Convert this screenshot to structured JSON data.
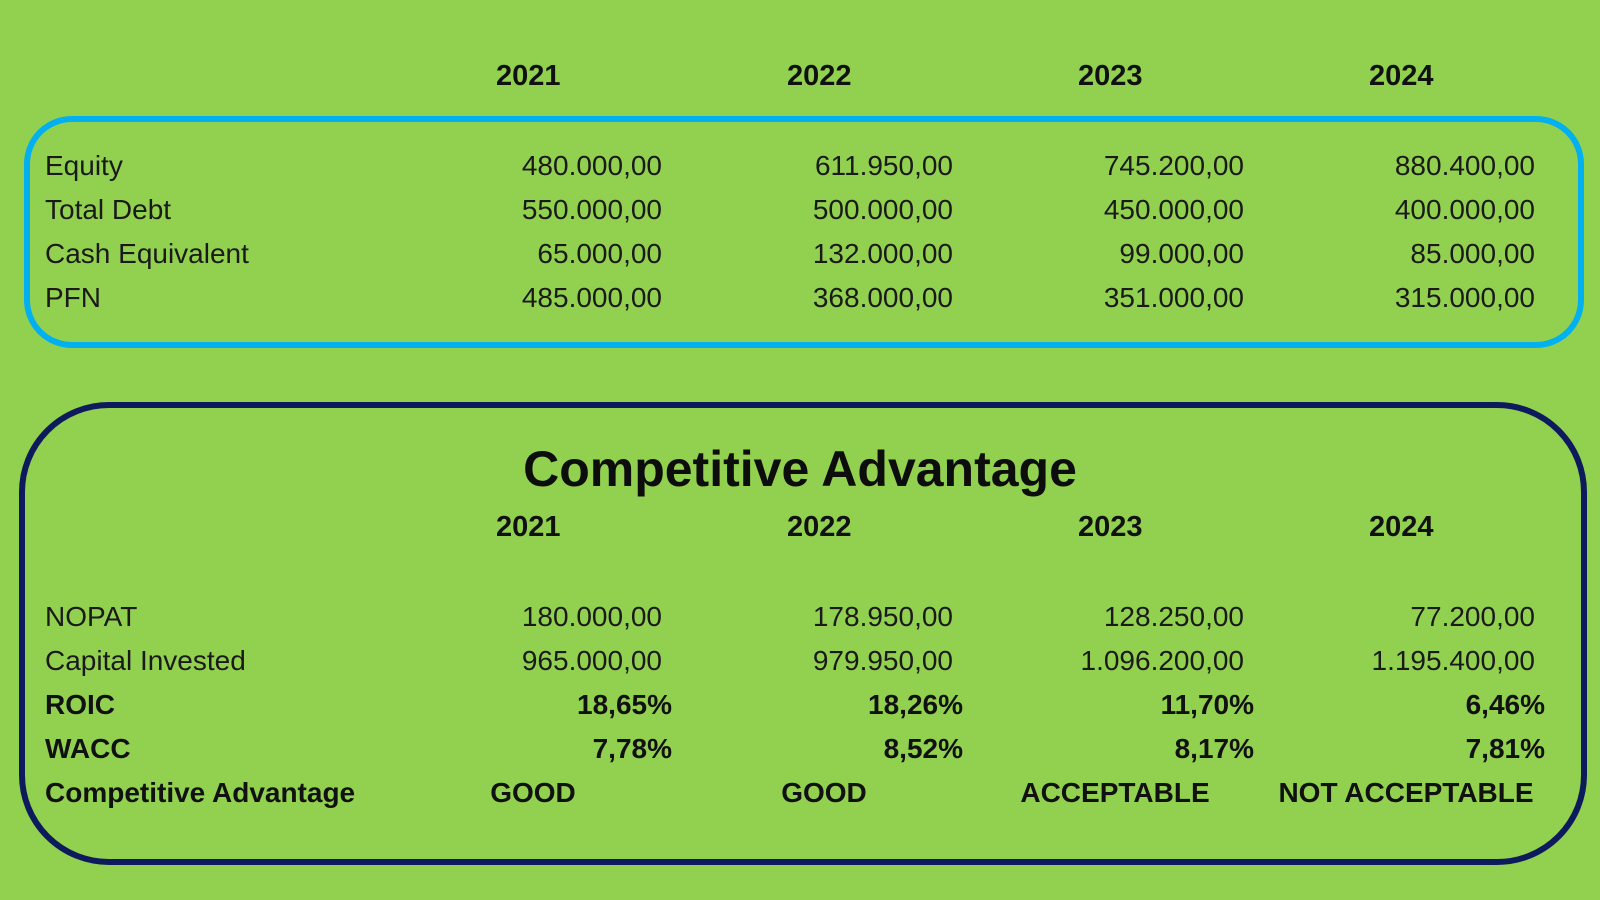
{
  "top_table": {
    "years": [
      "2021",
      "2022",
      "2023",
      "2024"
    ],
    "rows": [
      {
        "label": "Equity",
        "values": [
          "480.000,00",
          "611.950,00",
          "745.200,00",
          "880.400,00"
        ]
      },
      {
        "label": "Total Debt",
        "values": [
          "550.000,00",
          "500.000,00",
          "450.000,00",
          "400.000,00"
        ]
      },
      {
        "label": "Cash Equivalent",
        "values": [
          "65.000,00",
          "132.000,00",
          "99.000,00",
          "85.000,00"
        ]
      },
      {
        "label": "PFN",
        "values": [
          "485.000,00",
          "368.000,00",
          "351.000,00",
          "315.000,00"
        ]
      }
    ]
  },
  "competitive": {
    "title": "Competitive Advantage",
    "years": [
      "2021",
      "2022",
      "2023",
      "2024"
    ],
    "rows": [
      {
        "label": "NOPAT",
        "values": [
          "180.000,00",
          "178.950,00",
          "128.250,00",
          "77.200,00"
        ]
      },
      {
        "label": "Capital Invested",
        "values": [
          "965.000,00",
          "979.950,00",
          "1.096.200,00",
          "1.195.400,00"
        ]
      },
      {
        "label": "ROIC",
        "values": [
          "18,65%",
          "18,26%",
          "11,70%",
          "6,46%"
        ]
      },
      {
        "label": "WACC",
        "values": [
          "7,78%",
          "8,52%",
          "8,17%",
          "7,81%"
        ]
      },
      {
        "label": "Competitive Advantage",
        "values": [
          "GOOD",
          "GOOD",
          "ACCEPTABLE",
          "NOT ACCEPTABLE"
        ]
      }
    ]
  },
  "colors": {
    "background": "#92d050",
    "top_box_border": "#00b0f0",
    "bottom_box_border": "#0d1a5c"
  }
}
